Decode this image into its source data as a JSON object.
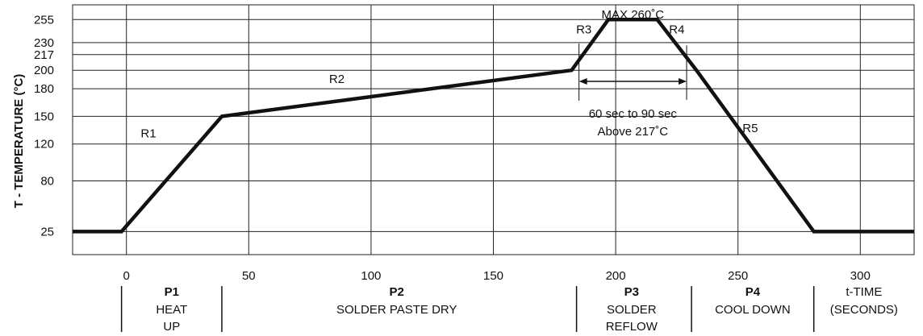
{
  "chart_data": {
    "type": "line",
    "title": "",
    "ylabel": "T - TEMPERATURE (°C)",
    "xlabel": "t-TIME (SECONDS)",
    "xlabel_lines": [
      "t-TIME",
      "(SECONDS)"
    ],
    "xlim": [
      -22,
      322
    ],
    "ylim": [
      0,
      271
    ],
    "x_ticks": [
      0,
      50,
      100,
      150,
      200,
      250,
      300
    ],
    "y_ticks": [
      25,
      80,
      120,
      150,
      180,
      200,
      217,
      230,
      255
    ],
    "grid": true,
    "series": [
      {
        "x": [
          -22,
          -2,
          39,
          182,
          197,
          217,
          233,
          281,
          322
        ],
        "y": [
          25,
          25,
          150,
          200,
          255,
          255,
          200,
          25,
          25
        ]
      }
    ],
    "segment_labels": [
      {
        "text": "R1",
        "x": 9,
        "y": 127
      },
      {
        "text": "R2",
        "x": 86,
        "y": 186
      },
      {
        "text": "R3",
        "x": 187,
        "y": 240
      },
      {
        "text": "R4",
        "x": 225,
        "y": 240
      },
      {
        "text": "R5",
        "x": 255,
        "y": 133
      }
    ],
    "annotations": {
      "max_label": "MAX 260˚C",
      "duration_line1": "60 sec to 90 sec",
      "duration_line2": "Above 217˚C",
      "duration_start_x": 185,
      "duration_end_x": 229,
      "duration_y": 188
    },
    "phases": [
      {
        "id": "P1",
        "lines": [
          "HEAT",
          "UP"
        ],
        "start": -2,
        "end": 39
      },
      {
        "id": "P2",
        "lines": [
          "SOLDER PASTE DRY"
        ],
        "start": 39,
        "end": 182
      },
      {
        "id": "P3",
        "lines": [
          "SOLDER",
          "REFLOW"
        ],
        "start": 182,
        "end": 231
      },
      {
        "id": "P4",
        "lines": [
          "COOL DOWN"
        ],
        "start": 231,
        "end": 281
      }
    ],
    "phase_boundaries": [
      -2,
      39,
      184,
      231,
      281
    ]
  }
}
